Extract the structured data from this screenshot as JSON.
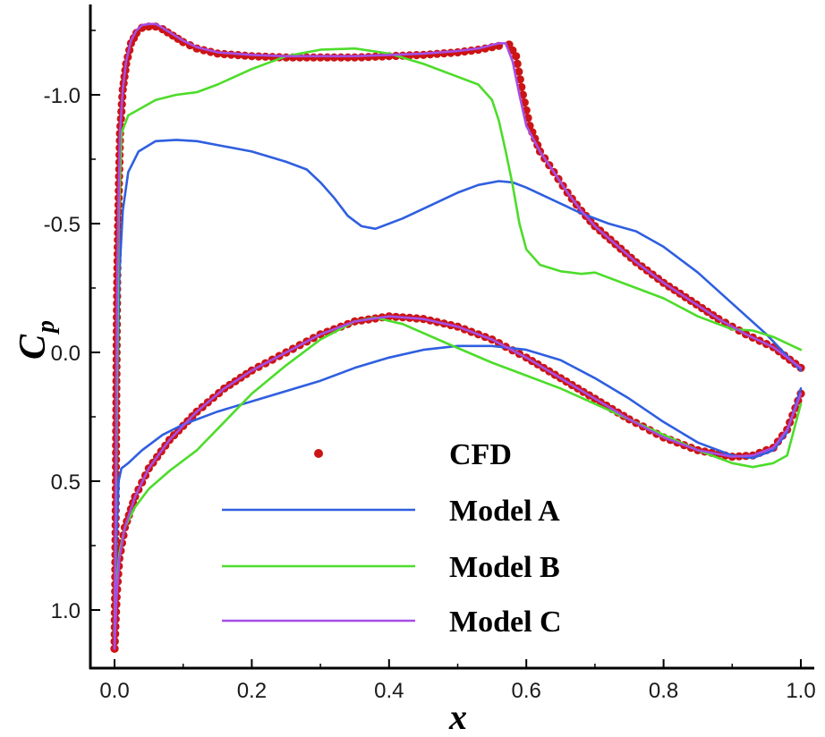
{
  "chart_data": {
    "type": "line",
    "title": "",
    "xlabel": "x",
    "ylabel_main": "C",
    "ylabel_sub": "p",
    "xlim": [
      0,
      1
    ],
    "ylim": [
      1.2,
      -1.3
    ],
    "y_inverted": true,
    "xticks": [
      0.0,
      0.2,
      0.4,
      0.6,
      0.8,
      1.0
    ],
    "xtick_labels": [
      "0.0",
      "0.2",
      "0.4",
      "0.6",
      "0.8",
      "1.0"
    ],
    "yticks": [
      -1.0,
      -0.5,
      0.0,
      0.5,
      1.0
    ],
    "ytick_labels": [
      "-1.0",
      "-0.5",
      "0.0",
      "0.5",
      "1.0"
    ],
    "grid": false,
    "legend_position": "bottom-center",
    "series": [
      {
        "name": "CFD",
        "style": "markers",
        "color": "#cc1414",
        "upper": [
          [
            0.0,
            1.15
          ],
          [
            0.001,
            0.9
          ],
          [
            0.002,
            0.5
          ],
          [
            0.003,
            0.0
          ],
          [
            0.004,
            -0.3
          ],
          [
            0.006,
            -0.6
          ],
          [
            0.008,
            -0.85
          ],
          [
            0.012,
            -1.02
          ],
          [
            0.017,
            -1.12
          ],
          [
            0.024,
            -1.2
          ],
          [
            0.032,
            -1.24
          ],
          [
            0.04,
            -1.26
          ],
          [
            0.05,
            -1.265
          ],
          [
            0.06,
            -1.265
          ],
          [
            0.07,
            -1.255
          ],
          [
            0.085,
            -1.23
          ],
          [
            0.1,
            -1.205
          ],
          [
            0.12,
            -1.18
          ],
          [
            0.15,
            -1.16
          ],
          [
            0.2,
            -1.15
          ],
          [
            0.25,
            -1.145
          ],
          [
            0.3,
            -1.145
          ],
          [
            0.35,
            -1.145
          ],
          [
            0.4,
            -1.15
          ],
          [
            0.45,
            -1.155
          ],
          [
            0.5,
            -1.165
          ],
          [
            0.53,
            -1.175
          ],
          [
            0.56,
            -1.19
          ],
          [
            0.575,
            -1.195
          ],
          [
            0.585,
            -1.15
          ],
          [
            0.595,
            -1.0
          ],
          [
            0.605,
            -0.88
          ],
          [
            0.62,
            -0.78
          ],
          [
            0.64,
            -0.7
          ],
          [
            0.66,
            -0.62
          ],
          [
            0.68,
            -0.55
          ],
          [
            0.7,
            -0.49
          ],
          [
            0.73,
            -0.42
          ],
          [
            0.76,
            -0.35
          ],
          [
            0.8,
            -0.27
          ],
          [
            0.84,
            -0.2
          ],
          [
            0.88,
            -0.13
          ],
          [
            0.92,
            -0.07
          ],
          [
            0.96,
            -0.02
          ],
          [
            1.0,
            0.06
          ]
        ],
        "lower": [
          [
            0.0,
            1.15
          ],
          [
            0.003,
            0.95
          ],
          [
            0.007,
            0.8
          ],
          [
            0.015,
            0.68
          ],
          [
            0.03,
            0.56
          ],
          [
            0.05,
            0.45
          ],
          [
            0.08,
            0.34
          ],
          [
            0.12,
            0.23
          ],
          [
            0.16,
            0.14
          ],
          [
            0.2,
            0.07
          ],
          [
            0.25,
            0.0
          ],
          [
            0.3,
            -0.07
          ],
          [
            0.35,
            -0.12
          ],
          [
            0.4,
            -0.14
          ],
          [
            0.45,
            -0.13
          ],
          [
            0.5,
            -0.1
          ],
          [
            0.55,
            -0.05
          ],
          [
            0.6,
            0.02
          ],
          [
            0.65,
            0.1
          ],
          [
            0.7,
            0.18
          ],
          [
            0.75,
            0.26
          ],
          [
            0.8,
            0.33
          ],
          [
            0.85,
            0.38
          ],
          [
            0.9,
            0.405
          ],
          [
            0.93,
            0.4
          ],
          [
            0.96,
            0.37
          ],
          [
            0.98,
            0.3
          ],
          [
            1.0,
            0.16
          ]
        ]
      },
      {
        "name": "Model A",
        "style": "line",
        "color": "#2f5fe0",
        "upper": [
          [
            0.0,
            1.1
          ],
          [
            0.002,
            0.6
          ],
          [
            0.004,
            0.1
          ],
          [
            0.007,
            -0.3
          ],
          [
            0.012,
            -0.55
          ],
          [
            0.02,
            -0.7
          ],
          [
            0.035,
            -0.78
          ],
          [
            0.06,
            -0.82
          ],
          [
            0.09,
            -0.825
          ],
          [
            0.12,
            -0.82
          ],
          [
            0.16,
            -0.8
          ],
          [
            0.2,
            -0.78
          ],
          [
            0.25,
            -0.74
          ],
          [
            0.28,
            -0.71
          ],
          [
            0.3,
            -0.66
          ],
          [
            0.32,
            -0.6
          ],
          [
            0.34,
            -0.53
          ],
          [
            0.36,
            -0.49
          ],
          [
            0.38,
            -0.48
          ],
          [
            0.42,
            -0.52
          ],
          [
            0.46,
            -0.57
          ],
          [
            0.5,
            -0.62
          ],
          [
            0.53,
            -0.65
          ],
          [
            0.56,
            -0.665
          ],
          [
            0.58,
            -0.66
          ],
          [
            0.6,
            -0.64
          ],
          [
            0.64,
            -0.59
          ],
          [
            0.68,
            -0.54
          ],
          [
            0.72,
            -0.5
          ],
          [
            0.76,
            -0.47
          ],
          [
            0.8,
            -0.41
          ],
          [
            0.85,
            -0.31
          ],
          [
            0.9,
            -0.19
          ],
          [
            0.95,
            -0.07
          ],
          [
            1.0,
            0.07
          ]
        ],
        "lower": [
          [
            0.0,
            1.1
          ],
          [
            0.003,
            0.7
          ],
          [
            0.006,
            0.5
          ],
          [
            0.01,
            0.45
          ],
          [
            0.02,
            0.43
          ],
          [
            0.04,
            0.38
          ],
          [
            0.07,
            0.32
          ],
          [
            0.1,
            0.28
          ],
          [
            0.15,
            0.23
          ],
          [
            0.2,
            0.19
          ],
          [
            0.25,
            0.15
          ],
          [
            0.3,
            0.11
          ],
          [
            0.35,
            0.06
          ],
          [
            0.4,
            0.02
          ],
          [
            0.45,
            -0.01
          ],
          [
            0.5,
            -0.025
          ],
          [
            0.55,
            -0.025
          ],
          [
            0.6,
            -0.01
          ],
          [
            0.65,
            0.03
          ],
          [
            0.7,
            0.1
          ],
          [
            0.75,
            0.18
          ],
          [
            0.8,
            0.27
          ],
          [
            0.85,
            0.35
          ],
          [
            0.9,
            0.4
          ],
          [
            0.93,
            0.41
          ],
          [
            0.96,
            0.38
          ],
          [
            0.98,
            0.31
          ],
          [
            1.0,
            0.14
          ]
        ]
      },
      {
        "name": "Model B",
        "style": "line",
        "color": "#4ddc2a",
        "upper": [
          [
            0.0,
            1.1
          ],
          [
            0.002,
            0.6
          ],
          [
            0.004,
            0.0
          ],
          [
            0.006,
            -0.5
          ],
          [
            0.01,
            -0.85
          ],
          [
            0.02,
            -0.92
          ],
          [
            0.04,
            -0.95
          ],
          [
            0.06,
            -0.98
          ],
          [
            0.09,
            -1.0
          ],
          [
            0.12,
            -1.01
          ],
          [
            0.15,
            -1.04
          ],
          [
            0.2,
            -1.1
          ],
          [
            0.25,
            -1.15
          ],
          [
            0.3,
            -1.175
          ],
          [
            0.35,
            -1.18
          ],
          [
            0.4,
            -1.16
          ],
          [
            0.45,
            -1.12
          ],
          [
            0.5,
            -1.07
          ],
          [
            0.53,
            -1.04
          ],
          [
            0.55,
            -0.98
          ],
          [
            0.56,
            -0.9
          ],
          [
            0.57,
            -0.78
          ],
          [
            0.58,
            -0.65
          ],
          [
            0.59,
            -0.5
          ],
          [
            0.6,
            -0.4
          ],
          [
            0.62,
            -0.34
          ],
          [
            0.65,
            -0.315
          ],
          [
            0.68,
            -0.305
          ],
          [
            0.7,
            -0.31
          ],
          [
            0.75,
            -0.26
          ],
          [
            0.8,
            -0.21
          ],
          [
            0.85,
            -0.14
          ],
          [
            0.9,
            -0.09
          ],
          [
            0.93,
            -0.085
          ],
          [
            0.96,
            -0.06
          ],
          [
            1.0,
            -0.01
          ]
        ],
        "lower": [
          [
            0.0,
            1.1
          ],
          [
            0.003,
            0.9
          ],
          [
            0.007,
            0.78
          ],
          [
            0.015,
            0.68
          ],
          [
            0.03,
            0.6
          ],
          [
            0.05,
            0.53
          ],
          [
            0.08,
            0.46
          ],
          [
            0.12,
            0.38
          ],
          [
            0.16,
            0.27
          ],
          [
            0.2,
            0.16
          ],
          [
            0.25,
            0.05
          ],
          [
            0.3,
            -0.05
          ],
          [
            0.35,
            -0.12
          ],
          [
            0.38,
            -0.135
          ],
          [
            0.42,
            -0.11
          ],
          [
            0.48,
            -0.04
          ],
          [
            0.55,
            0.04
          ],
          [
            0.6,
            0.09
          ],
          [
            0.65,
            0.14
          ],
          [
            0.7,
            0.2
          ],
          [
            0.75,
            0.26
          ],
          [
            0.8,
            0.32
          ],
          [
            0.85,
            0.38
          ],
          [
            0.9,
            0.43
          ],
          [
            0.93,
            0.445
          ],
          [
            0.96,
            0.43
          ],
          [
            0.98,
            0.4
          ],
          [
            1.0,
            0.2
          ]
        ]
      },
      {
        "name": "Model C",
        "style": "line",
        "color": "#a64de6",
        "upper": [
          [
            0.0,
            1.15
          ],
          [
            0.001,
            0.9
          ],
          [
            0.002,
            0.5
          ],
          [
            0.003,
            0.0
          ],
          [
            0.004,
            -0.3
          ],
          [
            0.006,
            -0.6
          ],
          [
            0.008,
            -0.85
          ],
          [
            0.012,
            -1.02
          ],
          [
            0.017,
            -1.13
          ],
          [
            0.024,
            -1.21
          ],
          [
            0.032,
            -1.25
          ],
          [
            0.04,
            -1.27
          ],
          [
            0.05,
            -1.275
          ],
          [
            0.06,
            -1.275
          ],
          [
            0.07,
            -1.26
          ],
          [
            0.085,
            -1.235
          ],
          [
            0.1,
            -1.21
          ],
          [
            0.12,
            -1.185
          ],
          [
            0.15,
            -1.165
          ],
          [
            0.2,
            -1.155
          ],
          [
            0.25,
            -1.15
          ],
          [
            0.3,
            -1.15
          ],
          [
            0.35,
            -1.15
          ],
          [
            0.4,
            -1.155
          ],
          [
            0.45,
            -1.16
          ],
          [
            0.5,
            -1.17
          ],
          [
            0.53,
            -1.18
          ],
          [
            0.56,
            -1.2
          ],
          [
            0.57,
            -1.2
          ],
          [
            0.58,
            -1.13
          ],
          [
            0.59,
            -1.0
          ],
          [
            0.6,
            -0.88
          ],
          [
            0.62,
            -0.78
          ],
          [
            0.64,
            -0.7
          ],
          [
            0.66,
            -0.62
          ],
          [
            0.68,
            -0.55
          ],
          [
            0.7,
            -0.49
          ],
          [
            0.73,
            -0.42
          ],
          [
            0.76,
            -0.35
          ],
          [
            0.8,
            -0.27
          ],
          [
            0.84,
            -0.2
          ],
          [
            0.88,
            -0.13
          ],
          [
            0.92,
            -0.07
          ],
          [
            0.96,
            -0.02
          ],
          [
            1.0,
            0.06
          ]
        ],
        "lower": [
          [
            0.0,
            1.15
          ],
          [
            0.003,
            0.95
          ],
          [
            0.007,
            0.8
          ],
          [
            0.015,
            0.68
          ],
          [
            0.03,
            0.56
          ],
          [
            0.05,
            0.45
          ],
          [
            0.08,
            0.34
          ],
          [
            0.12,
            0.23
          ],
          [
            0.16,
            0.14
          ],
          [
            0.2,
            0.07
          ],
          [
            0.25,
            0.0
          ],
          [
            0.3,
            -0.07
          ],
          [
            0.35,
            -0.12
          ],
          [
            0.4,
            -0.14
          ],
          [
            0.45,
            -0.13
          ],
          [
            0.5,
            -0.1
          ],
          [
            0.55,
            -0.05
          ],
          [
            0.6,
            0.02
          ],
          [
            0.65,
            0.1
          ],
          [
            0.7,
            0.18
          ],
          [
            0.75,
            0.26
          ],
          [
            0.8,
            0.33
          ],
          [
            0.85,
            0.38
          ],
          [
            0.9,
            0.405
          ],
          [
            0.93,
            0.4
          ],
          [
            0.96,
            0.37
          ],
          [
            0.98,
            0.3
          ],
          [
            1.0,
            0.16
          ]
        ]
      }
    ]
  }
}
